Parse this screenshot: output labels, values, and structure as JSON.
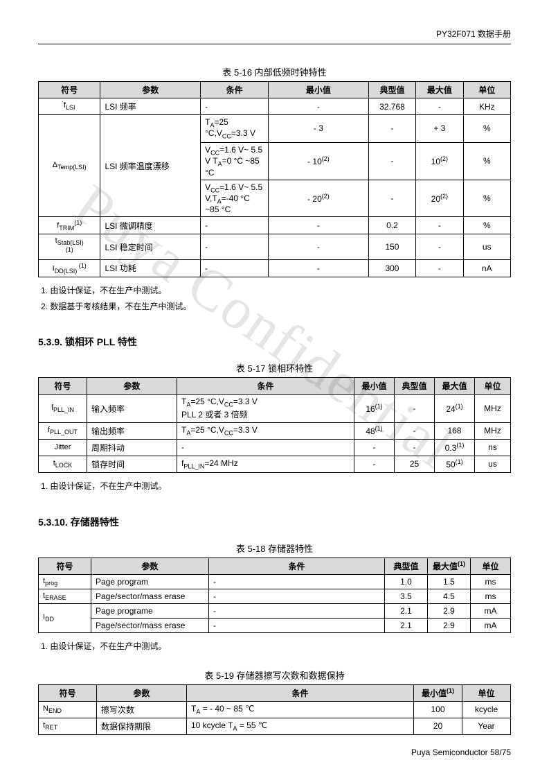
{
  "header": {
    "doc_title": "PY32F071 数据手册"
  },
  "watermark": "Puya Confidential",
  "footer": "Puya Semiconductor 58/75",
  "table516": {
    "caption": "表 5-16 内部低频时钟特性",
    "headers": [
      "符号",
      "参数",
      "条件",
      "最小值",
      "典型值",
      "最大值",
      "单位"
    ],
    "r1": {
      "sym": "f",
      "sub": "LSI",
      "param": "LSI 频率",
      "cond": "-",
      "min": "-",
      "typ": "32.768",
      "max": "-",
      "unit": "KHz"
    },
    "r2a": {
      "cond": "T",
      "condText": "=25 °C,V",
      "condText2": "=3.3 V",
      "min": "- 3",
      "typ": "-",
      "max": "+ 3",
      "unit": "%"
    },
    "r2b": {
      "cond": "V",
      "condText": "=1.6 V~ 5.5 V T",
      "condText2": "=0 °C ~85 °C",
      "min": "- 10",
      "sup": "(2)",
      "typ": "-",
      "max": "10",
      "unit": "%"
    },
    "r2c": {
      "cond": "V",
      "condText": "=1.6 V~ 5.5 V,T",
      "condText2": "=-40 °C ~85 °C",
      "min": "- 20",
      "sup": "(2)",
      "typ": "-",
      "max": "20",
      "unit": "%"
    },
    "r2sym": {
      "sym": "Δ",
      "sub": "Temp(LSI)",
      "param": "LSI 频率温度漂移"
    },
    "r3": {
      "sym": "f",
      "sub": "TRIM",
      "sup": "(1)",
      "param": "LSI 微调精度",
      "cond": "-",
      "min": "-",
      "typ": "0.2",
      "max": "-",
      "unit": "%"
    },
    "r4": {
      "sym": "t",
      "sub": "Stab(LSI)",
      "sup": "(1)",
      "param": "LSI 稳定时间",
      "cond": "-",
      "min": "-",
      "typ": "150",
      "max": "-",
      "unit": "us"
    },
    "r5": {
      "sym": "I",
      "sub": "DD(LSI)",
      "sup": " (1)",
      "param": "LSI 功耗",
      "cond": "-",
      "min": "-",
      "typ": "300",
      "max": "-",
      "unit": "nA"
    },
    "note1": "1.    由设计保证，不在生产中测试。",
    "note2": "2.    数据基于考核结果，不在生产中测试。"
  },
  "sec539": {
    "heading": "5.3.9.   锁相环 PLL 特性"
  },
  "table517": {
    "caption": "表 5-17 锁相环特性",
    "headers": [
      "符号",
      "参数",
      "条件",
      "最小值",
      "典型值",
      "最大值",
      "单位"
    ],
    "r1": {
      "sym": "f",
      "sub": "PLL_IN",
      "param": "输入频率",
      "cond1": "T",
      "cond1b": "=25 °C,V",
      "cond1c": "=3.3 V",
      "cond2": "PLL 2 或者 3 倍频",
      "min": "16",
      "minsup": "(1)",
      "typ": "-",
      "max": "24",
      "maxsup": "(1)",
      "unit": "MHz"
    },
    "r2": {
      "sym": "f",
      "sub": "PLL_OUT",
      "param": "输出频率",
      "cond": "T",
      "condb": "=25 °C,V",
      "condc": "=3.3 V",
      "min": "48",
      "minsup": "(1)",
      "typ": "-",
      "max": "168",
      "unit": "MHz"
    },
    "r3": {
      "sym": "Jitter",
      "param": "周期抖动",
      "cond": "-",
      "min": "-",
      "typ": "-",
      "max": "0.3",
      "maxsup": "(1)",
      "unit": "ns"
    },
    "r4": {
      "sym": "t",
      "sub": "LOCK",
      "param": "锁存时间",
      "cond": "f",
      "condsub": "PLL_IN",
      "condText": "=24 MHz",
      "min": "-",
      "typ": "25",
      "max": "50",
      "maxsup": "(1)",
      "unit": "us"
    },
    "note1": "1.    由设计保证，不在生产中测试。"
  },
  "sec5310": {
    "heading": "5.3.10. 存储器特性"
  },
  "table518": {
    "caption": "表 5-18 存储器特性",
    "headers": [
      "符号",
      "参数",
      "条件",
      "典型值",
      "最大值(1)",
      "单位"
    ],
    "maxhdr_sup": "(1)",
    "r1": {
      "sym": "t",
      "sub": "prog",
      "param": "Page program",
      "cond": "-",
      "typ": "1.0",
      "max": "1.5",
      "unit": "ms"
    },
    "r2": {
      "sym": "t",
      "sub": "ERASE",
      "param": "Page/sector/mass erase",
      "cond": "-",
      "typ": "3.5",
      "max": "4.5",
      "unit": "ms"
    },
    "r3": {
      "param": "Page programe",
      "cond": "-",
      "typ": "2.1",
      "max": "2.9",
      "unit": "mA"
    },
    "r4": {
      "param": "Page/sector/mass erase",
      "cond": "-",
      "typ": "2.1",
      "max": "2.9",
      "unit": "mA"
    },
    "r34sym": {
      "sym": "I",
      "sub": "DD"
    },
    "note1": "1.    由设计保证，不在生产中测试。"
  },
  "table519": {
    "caption": "表 5-19 存储器擦写次数和数据保持",
    "headers": [
      "符号",
      "参数",
      "条件",
      "最小值(1)",
      "单位"
    ],
    "minhdr_sup": "(1)",
    "r1": {
      "sym": "N",
      "sub": "END",
      "param": "擦写次数",
      "cond": "T",
      "condsub": "A",
      "condText": " = - 40 ~ 85 ℃",
      "min": "100",
      "unit": "kcycle"
    },
    "r2": {
      "sym": "t",
      "sub": "RET",
      "param": "数据保持期限",
      "cond": "10 kcycle T",
      "condsub": "A",
      "condText": " = 55 ℃",
      "min": "20",
      "unit": "Year"
    }
  }
}
